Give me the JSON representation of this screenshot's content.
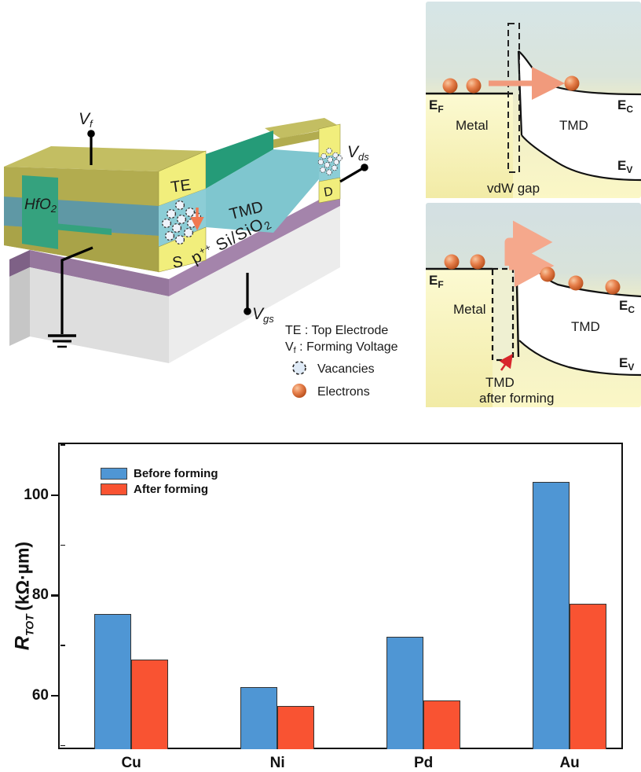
{
  "device": {
    "labels": {
      "vf": {
        "main": "V",
        "sub": "f"
      },
      "vds": {
        "main": "V",
        "sub": "ds"
      },
      "vgs": {
        "main": "V",
        "sub": "gs"
      },
      "hfo2": {
        "main": "HfO",
        "sub": "2"
      },
      "te": "TE",
      "tmd": "TMD",
      "s": "S",
      "d": "D",
      "substrate": {
        "p": "p",
        "sup": "++",
        "rest": " Si/SiO",
        "sub": "2"
      }
    },
    "key": {
      "te_line": "TE : Top Electrode",
      "vf_main": "V",
      "vf_sub": "f",
      "vf_rest": " : Forming Voltage",
      "vacancies": "Vacancies",
      "electrons": "Electrons"
    },
    "colors": {
      "electrode_yellow": "#f1ee7c",
      "metal_olive": "#b2ac4f",
      "metal_olive_top": "#c3be62",
      "tmd_light": "#8ccdd6",
      "tmd_dark_green": "#259b78",
      "hfo2_green": "#35a27e",
      "teal_layer": "#5f98a5",
      "sio2_purple": "#9c7da4",
      "si_gray": "#e9e9e9",
      "electron_orange": "#d3622f",
      "arrow_orange": "#f07850"
    }
  },
  "band_top": {
    "ef": {
      "main": "E",
      "sub": "F"
    },
    "ec": {
      "main": "E",
      "sub": "C"
    },
    "ev": {
      "main": "E",
      "sub": "V"
    },
    "metal": "Metal",
    "tmd": "TMD",
    "gap_label": "vdW gap"
  },
  "band_bottom": {
    "ef": {
      "main": "E",
      "sub": "F"
    },
    "ec": {
      "main": "E",
      "sub": "C"
    },
    "ev": {
      "main": "E",
      "sub": "V"
    },
    "metal": "Metal",
    "tmd": "TMD",
    "note_line1": "TMD",
    "note_line2": "after forming",
    "note_color": "#d8262c"
  },
  "chart_data": {
    "type": "bar",
    "categories": [
      "Cu",
      "Ni",
      "Pd",
      "Au"
    ],
    "series": [
      {
        "name": "Before forming",
        "color": "#4f96d4",
        "values": [
          76.3,
          61.7,
          71.8,
          102.7
        ]
      },
      {
        "name": "After forming",
        "color": "#f95332",
        "values": [
          67.2,
          58.0,
          59.0,
          78.3
        ]
      }
    ],
    "title": "",
    "xlabel": "",
    "ylabel_r": "R",
    "ylabel_sub": "TOT",
    "ylabel_unit": "(kΩ·µm)",
    "yticks": [
      60,
      80,
      100
    ],
    "yticks_minor": [
      50,
      70,
      90,
      110
    ],
    "ylim": [
      49.3,
      110.5
    ],
    "legend_position": "top-left",
    "grid": false
  }
}
